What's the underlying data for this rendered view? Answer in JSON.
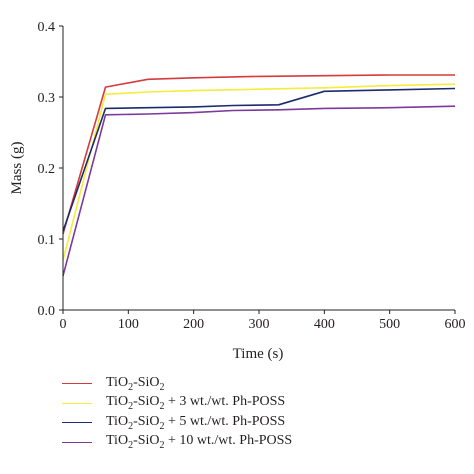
{
  "chart_data": {
    "type": "line",
    "xlabel": "Time (s)",
    "ylabel": "Mass (g)",
    "xlim": [
      0,
      600
    ],
    "ylim": [
      0,
      0.4
    ],
    "xticks": [
      "0",
      "100",
      "200",
      "300",
      "400",
      "500",
      "600"
    ],
    "yticks": [
      "0.0",
      "0.1",
      "0.2",
      "0.3",
      "0.4"
    ],
    "grid": false,
    "legend_position": "bottom",
    "series": [
      {
        "name": "TiO2-SiO2",
        "label_parts": [
          {
            "t": "TiO"
          },
          {
            "t": "2",
            "sub": true
          },
          {
            "t": "-SiO"
          },
          {
            "t": "2",
            "sub": true
          }
        ],
        "color": "#d63a3a",
        "x": [
          0,
          65,
          130,
          200,
          300,
          400,
          500,
          600
        ],
        "y": [
          0.107,
          0.314,
          0.325,
          0.327,
          0.329,
          0.33,
          0.331,
          0.331
        ]
      },
      {
        "name": "TiO2-SiO2 + 3 wt./wt. Ph-POSS",
        "label_parts": [
          {
            "t": "TiO"
          },
          {
            "t": "2",
            "sub": true
          },
          {
            "t": "-SiO"
          },
          {
            "t": "2",
            "sub": true
          },
          {
            "t": " + 3 wt./wt. Ph-POSS"
          }
        ],
        "color": "#f5ec3c",
        "x": [
          0,
          65,
          130,
          200,
          300,
          400,
          500,
          600
        ],
        "y": [
          0.07,
          0.304,
          0.307,
          0.309,
          0.311,
          0.313,
          0.316,
          0.318
        ]
      },
      {
        "name": "TiO2-SiO2 + 5 wt./wt. Ph-POSS",
        "label_parts": [
          {
            "t": "TiO"
          },
          {
            "t": "2",
            "sub": true
          },
          {
            "t": "-SiO"
          },
          {
            "t": "2",
            "sub": true
          },
          {
            "t": " + 5 wt./wt. Ph-POSS"
          }
        ],
        "color": "#1c2a6e",
        "x": [
          0,
          65,
          130,
          200,
          260,
          330,
          400,
          500,
          600
        ],
        "y": [
          0.111,
          0.284,
          0.285,
          0.286,
          0.288,
          0.289,
          0.308,
          0.31,
          0.312
        ]
      },
      {
        "name": "TiO2-SiO2 + 10 wt./wt. Ph-POSS",
        "label_parts": [
          {
            "t": "TiO"
          },
          {
            "t": "2",
            "sub": true
          },
          {
            "t": "-SiO"
          },
          {
            "t": "2",
            "sub": true
          },
          {
            "t": " + 10 wt./wt. Ph-POSS"
          }
        ],
        "color": "#7b3a9c",
        "x": [
          0,
          65,
          130,
          200,
          260,
          330,
          400,
          500,
          600
        ],
        "y": [
          0.048,
          0.275,
          0.276,
          0.278,
          0.281,
          0.282,
          0.284,
          0.285,
          0.287
        ]
      }
    ]
  }
}
